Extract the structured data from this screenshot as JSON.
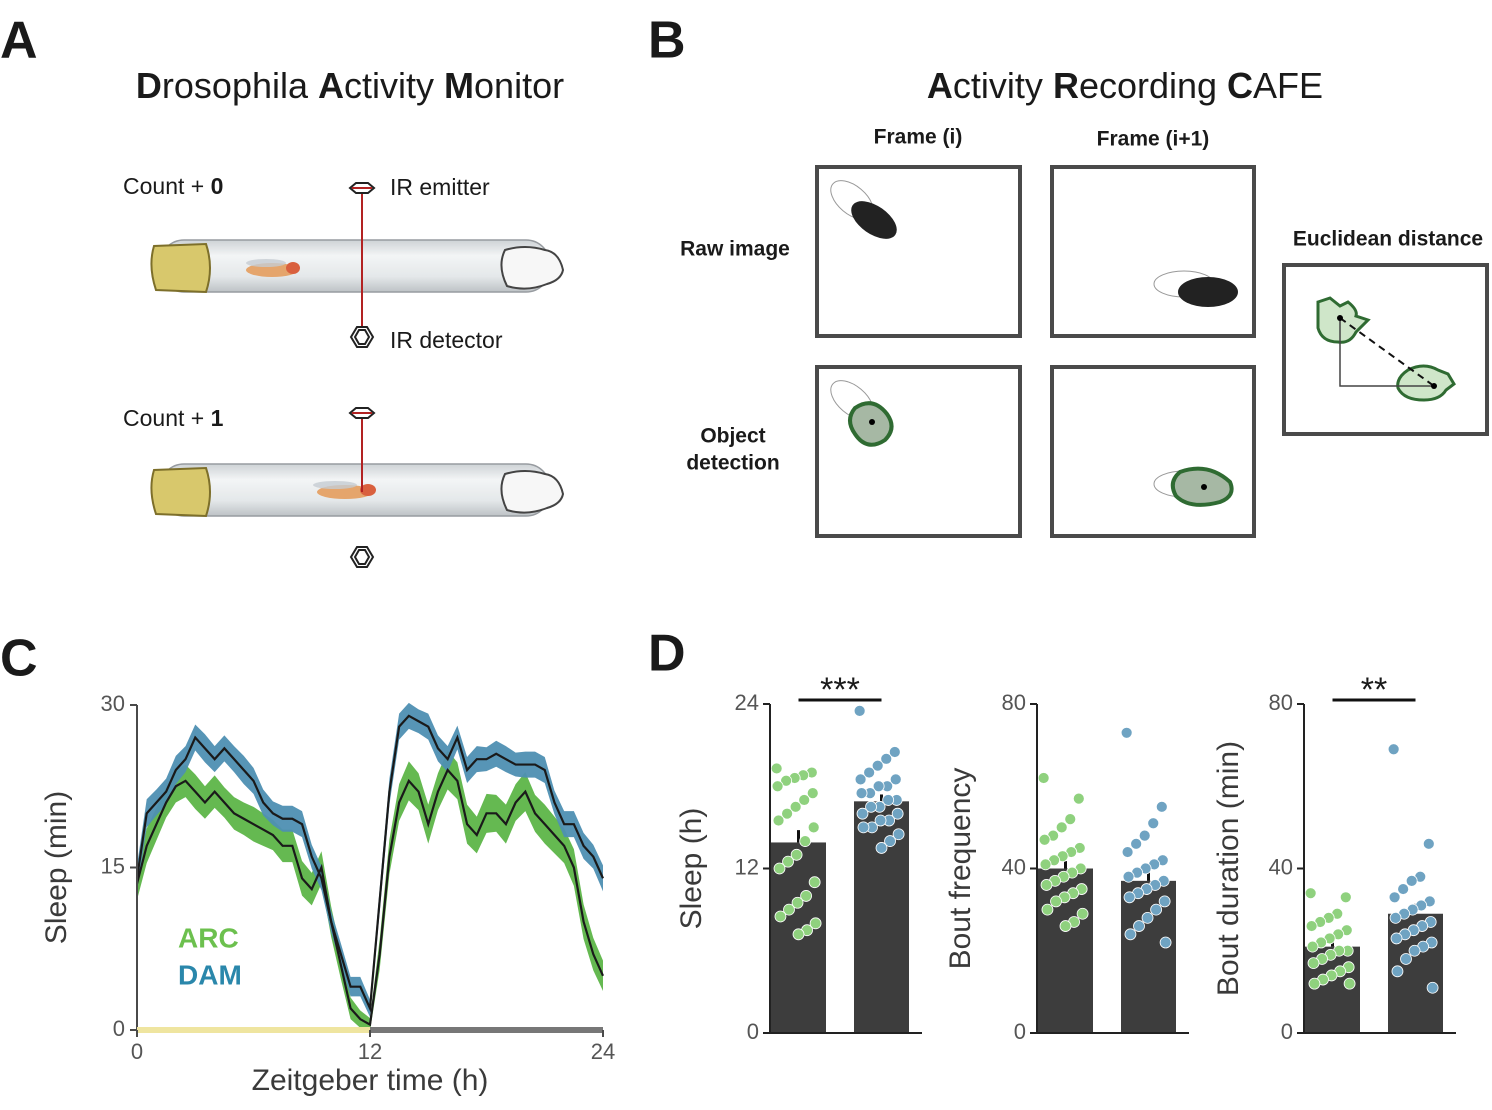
{
  "panels": {
    "a": {
      "label": "A",
      "title": "Drosophila Activity Monitor",
      "count_top": "Count + 0",
      "count_bottom": "Count + 1",
      "emitter": "IR emitter",
      "detector": "IR detector"
    },
    "b": {
      "label": "B",
      "title": "Activity Recording CAFE",
      "frame_i": "Frame (i)",
      "frame_next": "Frame (i+1)",
      "raw": "Raw image",
      "detection": [
        "Object",
        "detection"
      ],
      "distance": "Euclidean distance"
    },
    "c": {
      "label": "C"
    },
    "d": {
      "label": "D"
    }
  },
  "chart_data": [
    {
      "type": "line",
      "xlabel": "Zeitgeber time (h)",
      "ylabel": "Sleep (min)",
      "xlim": [
        0,
        24
      ],
      "xticks": [
        0,
        12,
        24
      ],
      "ylim": [
        0,
        30
      ],
      "yticks": [
        0,
        15,
        30
      ],
      "line_color": "#1a1a1a",
      "x": [
        0,
        0.5,
        1,
        1.5,
        2,
        2.5,
        3,
        3.5,
        4,
        4.5,
        5,
        5.5,
        6,
        6.5,
        7,
        7.5,
        8,
        8.5,
        9,
        9.5,
        10,
        10.5,
        11,
        11.5,
        12,
        12.5,
        13,
        13.5,
        14,
        14.5,
        15,
        15.5,
        16,
        16.5,
        17,
        17.5,
        18,
        18.5,
        19,
        19.5,
        20,
        20.5,
        21,
        21.5,
        22,
        22.5,
        23,
        23.5,
        24
      ],
      "series": [
        {
          "name": "ARC",
          "color": "#5db548",
          "legend_color": "#6cc04e",
          "values": [
            13.5,
            17,
            19,
            21,
            22.5,
            23,
            22,
            21,
            22,
            21,
            20,
            19.5,
            19,
            18.5,
            18,
            17,
            17,
            14,
            13,
            15,
            10,
            6,
            2,
            1,
            0.5,
            7,
            16,
            21,
            23,
            22,
            19,
            22,
            24,
            23,
            19,
            18,
            20,
            20,
            19,
            21,
            22,
            20,
            19,
            18,
            17,
            15,
            10,
            7,
            5
          ],
          "errors": [
            1.5,
            1.6,
            1.5,
            1.4,
            1.5,
            1.5,
            1.6,
            1.5,
            1.5,
            1.4,
            1.5,
            1.5,
            1.6,
            1.5,
            1.4,
            1.5,
            1.5,
            1.6,
            1.5,
            1.5,
            1.4,
            1.3,
            1.0,
            0.8,
            0.6,
            1.4,
            1.6,
            1.7,
            1.8,
            1.7,
            1.8,
            1.7,
            1.8,
            1.7,
            1.8,
            1.7,
            1.8,
            1.7,
            1.8,
            1.7,
            1.8,
            1.7,
            1.8,
            1.7,
            1.6,
            1.7,
            1.6,
            1.5,
            1.4
          ]
        },
        {
          "name": "DAM",
          "color": "#4e8fb2",
          "legend_color": "#2a87ab",
          "values": [
            14,
            20,
            21,
            22,
            24,
            25,
            27,
            26,
            25,
            26,
            25,
            24,
            23,
            21,
            20,
            19.5,
            19.5,
            19,
            16,
            14,
            10,
            7,
            4,
            4,
            2,
            12,
            22,
            28,
            29,
            28.5,
            28,
            26,
            25,
            27,
            24,
            25,
            25,
            25.5,
            25,
            24.5,
            24.5,
            24.5,
            24,
            21,
            19,
            19,
            17,
            16,
            14
          ],
          "errors": [
            1.2,
            1.3,
            1.2,
            1.2,
            1.3,
            1.2,
            1.2,
            1.3,
            1.2,
            1.2,
            1.2,
            1.3,
            1.2,
            1.2,
            1.1,
            1.2,
            1.2,
            1.2,
            1.1,
            1.1,
            1.0,
            1.0,
            0.9,
            0.9,
            0.8,
            1.1,
            1.2,
            1.2,
            1.2,
            1.1,
            1.2,
            1.2,
            1.2,
            1.1,
            1.2,
            1.2,
            1.1,
            1.2,
            1.2,
            1.1,
            1.2,
            1.2,
            1.2,
            1.1,
            1.2,
            1.2,
            1.2,
            1.1,
            1.2
          ]
        }
      ]
    },
    {
      "type": "bar",
      "ylabel": "Sleep (h)",
      "ylim": [
        0,
        24
      ],
      "yticks": [
        0,
        12,
        24
      ],
      "bar_color": "#3d3d3d",
      "significance": "***",
      "groups": [
        {
          "value": 13.9,
          "error": 0.9,
          "color": "#8fd17e",
          "points": [
            19.3,
            19,
            18.8,
            18.6,
            18.4,
            18,
            17.5,
            17,
            16.5,
            16,
            15.5,
            15,
            14,
            13,
            12.5,
            12,
            11,
            10,
            9.5,
            9,
            8.5,
            8,
            7.5,
            7.2
          ]
        },
        {
          "value": 16.9,
          "error": 0.5,
          "color": "#6fa3c2",
          "points": [
            23.5,
            20.5,
            20,
            19.5,
            19,
            18.5,
            18.5,
            18,
            18,
            17.5,
            17.5,
            17,
            17,
            16.5,
            16.5,
            16,
            16,
            15.5,
            15.5,
            15,
            15,
            14.5,
            14,
            13.5
          ]
        }
      ]
    },
    {
      "type": "bar",
      "ylabel": "Bout frequency",
      "ylim": [
        0,
        80
      ],
      "yticks": [
        0,
        40,
        80
      ],
      "bar_color": "#3d3d3d",
      "groups": [
        {
          "value": 40,
          "error": 1.8,
          "color": "#8fd17e",
          "points": [
            62,
            57,
            52,
            50,
            48,
            47,
            45,
            44,
            43,
            42,
            41,
            40,
            39,
            38,
            37,
            36,
            35,
            34,
            33,
            32,
            30,
            29,
            27,
            26
          ]
        },
        {
          "value": 37,
          "error": 2.3,
          "color": "#6fa3c2",
          "points": [
            73,
            55,
            51,
            48,
            46,
            44,
            42,
            41,
            40,
            39,
            38,
            37,
            36,
            35,
            34,
            33,
            32,
            30,
            28,
            26,
            24,
            22
          ]
        }
      ]
    },
    {
      "type": "bar",
      "ylabel": "Bout duration (min)",
      "ylim": [
        0,
        80
      ],
      "yticks": [
        0,
        40,
        80
      ],
      "bar_color": "#3d3d3d",
      "significance": "**",
      "groups": [
        {
          "value": 21,
          "error": 1.4,
          "color": "#8fd17e",
          "points": [
            34,
            33,
            29,
            28,
            27,
            26,
            25,
            24,
            23,
            22,
            21,
            20,
            20,
            19,
            18,
            17,
            16,
            15,
            14,
            13,
            12,
            12
          ]
        },
        {
          "value": 29,
          "error": 2.4,
          "color": "#6fa3c2",
          "points": [
            69,
            46,
            38,
            37,
            35,
            33,
            32,
            31,
            30,
            29,
            28,
            27,
            26,
            25,
            24,
            23,
            22,
            21,
            20,
            18,
            15,
            11
          ]
        }
      ]
    }
  ]
}
